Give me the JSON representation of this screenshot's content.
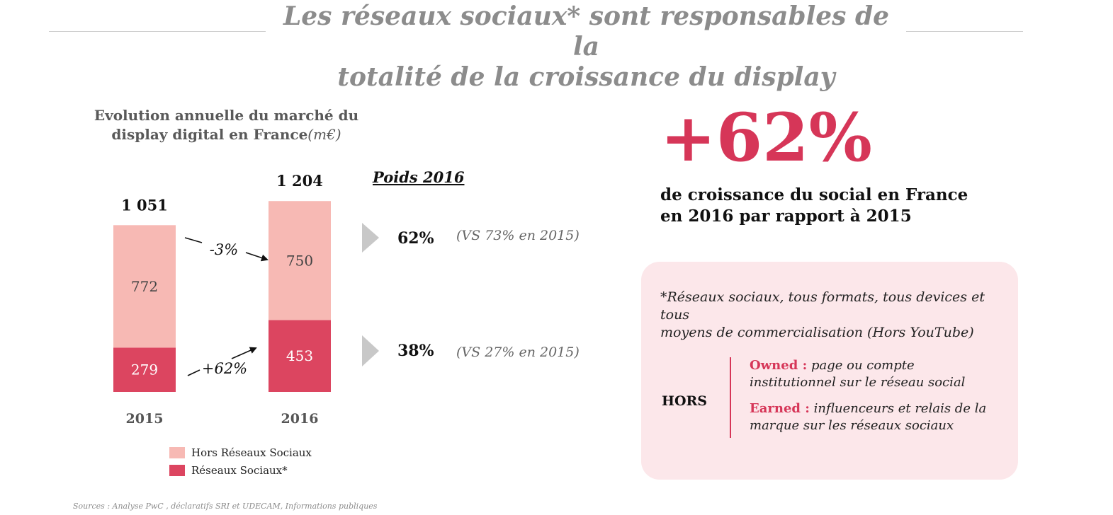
{
  "title_line1": "Les réseaux sociaux* sont responsables de la",
  "title_line2": "totalité de la croissance du display",
  "chart_title_line1": "Evolution annuelle du marché du",
  "chart_title_line2": "display digital en France",
  "chart_title_unit": "(m€)",
  "chart_data": {
    "type": "bar",
    "stacked": true,
    "categories": [
      "2015",
      "2016"
    ],
    "totals": [
      "1 051",
      "1 204"
    ],
    "series": [
      {
        "name": "Réseaux Sociaux*",
        "values": [
          279,
          453
        ],
        "color": "#dc4560",
        "label_color": "#ffffff"
      },
      {
        "name": "Hors Réseaux Sociaux",
        "values": [
          772,
          750
        ],
        "color": "#f7b9b4",
        "label_color": "#444444"
      }
    ],
    "annotations": [
      {
        "text": "-3%",
        "series": "Hors Réseaux Sociaux"
      },
      {
        "text": "+62%",
        "series": "Réseaux Sociaux*"
      }
    ],
    "ylim": [
      0,
      1204
    ],
    "xlabel": "",
    "ylabel": "",
    "grid": false,
    "legend": "bottom"
  },
  "poids": {
    "label": "Poids 2016",
    "hors_value": "62%",
    "hors_vs": "(VS 73% en 2015)",
    "social_value": "38%",
    "social_vs": "(VS 27% en 2015)"
  },
  "legend": {
    "hors": "Hors Réseaux Sociaux",
    "social": "Réseaux Sociaux*"
  },
  "source": "Sources : Analyse PwC , déclaratifs SRI et UDECAM, Informations publiques",
  "big_stat": "+62%",
  "stat_desc_line1": "de croissance du social en France",
  "stat_desc_line2": "en 2016 par rapport à 2015",
  "note": {
    "text_line1": "*Réseaux sociaux, tous formats, tous devices et tous",
    "text_line2": "moyens de commercialisation (Hors YouTube)",
    "hors_label": "HORS",
    "owned_key": "Owned :",
    "owned_line1": "page ou compte",
    "owned_line2": "institutionnel sur le réseau social",
    "earned_key": "Earned :",
    "earned_line1": "influenceurs et relais de la",
    "earned_line2": "marque sur les réseaux sociaux"
  },
  "colors": {
    "accent": "#d63658",
    "hors": "#f7b9b4",
    "social": "#dc4560",
    "note_bg": "#fce7ea",
    "title_gray": "#8c8c8c"
  }
}
